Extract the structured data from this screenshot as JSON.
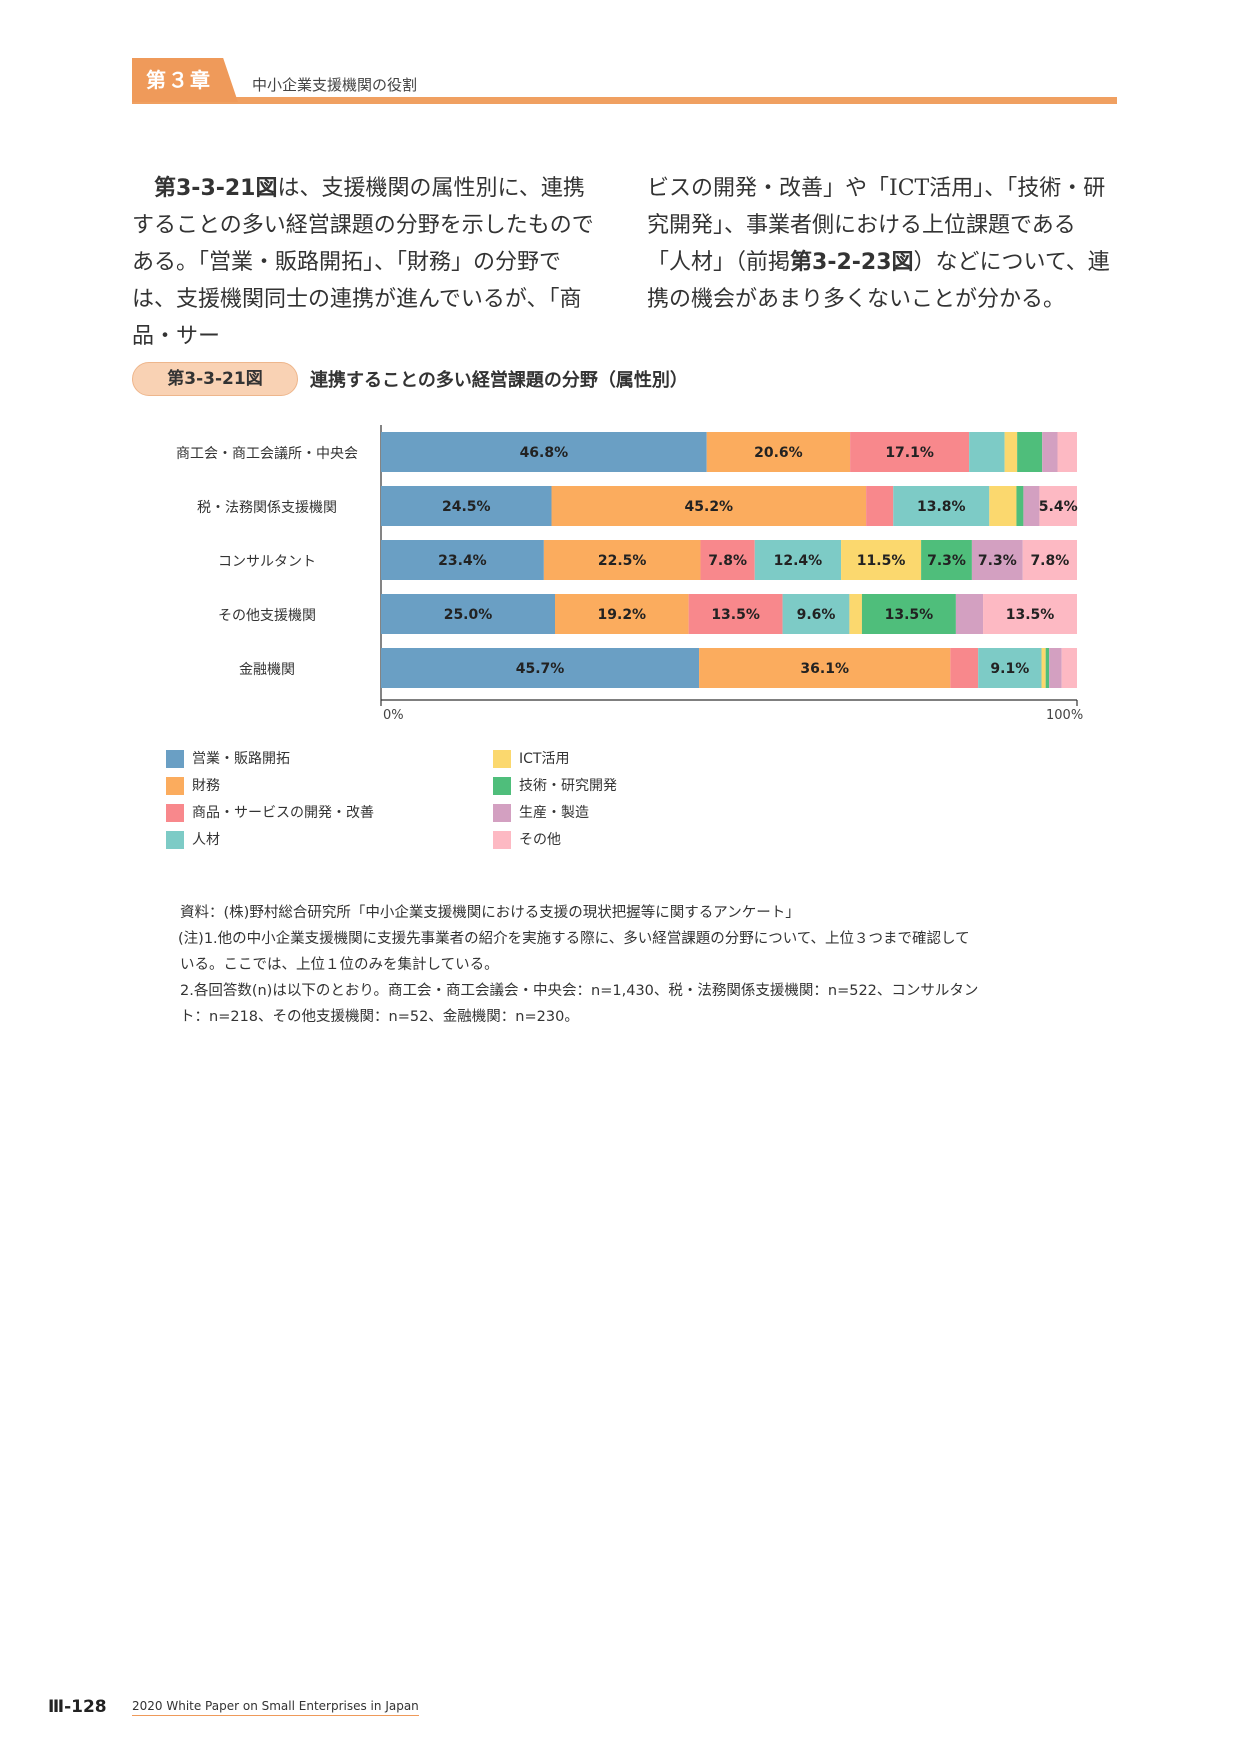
{
  "header": {
    "chapter_label": "第３章",
    "chapter_title": "中小企業支援機関の役割"
  },
  "body": {
    "left": {
      "fig_ref": "第3-3-21図",
      "text": "は、支援機関の属性別に、連携することの多い経営課題の分野を示したものである。「営業・販路開拓」、「財務」の分野では、支援機関同士の連携が進んでいるが、「商品・サー"
    },
    "right": {
      "text1": "ビスの開発・改善」や「ICT活用」、「技術・研究開発」、事業者側における上位課題である「人材」（前掲",
      "fig_ref": "第3-2-23図",
      "text2": "）などについて、連携の機会があまり多くないことが分かる。"
    }
  },
  "figure": {
    "number": "第3-3-21図",
    "title": "連携することの多い経営課題の分野（属性別）"
  },
  "chart_data": {
    "type": "bar",
    "orientation": "horizontal",
    "stacked": "100%",
    "categories": [
      "商工会・商工会議所・中央会",
      "税・法務関係支援機関",
      "コンサルタント",
      "その他支援機関",
      "金融機関"
    ],
    "series": [
      {
        "name": "営業・販路開拓",
        "color": "#6a9fc4",
        "values": [
          46.8,
          24.5,
          23.4,
          25.0,
          45.7
        ]
      },
      {
        "name": "財務",
        "color": "#fbac5e",
        "values": [
          20.6,
          45.2,
          22.5,
          19.2,
          36.1
        ]
      },
      {
        "name": "商品・サービスの開発・改善",
        "color": "#f8888c",
        "values": [
          17.1,
          3.9,
          7.8,
          13.5,
          4.0
        ]
      },
      {
        "name": "人材",
        "color": "#7dcbc6",
        "values": [
          5.1,
          13.8,
          12.4,
          9.6,
          9.1
        ]
      },
      {
        "name": "ICT活用",
        "color": "#fbd86e",
        "values": [
          1.8,
          3.9,
          11.5,
          1.8,
          0.6
        ]
      },
      {
        "name": "技術・研究開発",
        "color": "#4fbe7b",
        "values": [
          3.6,
          1.0,
          7.3,
          13.5,
          0.5
        ]
      },
      {
        "name": "生産・製造",
        "color": "#d3a0c1",
        "values": [
          2.2,
          2.3,
          7.3,
          3.9,
          1.8
        ]
      },
      {
        "name": "その他",
        "color": "#fdb9c3",
        "values": [
          2.8,
          5.4,
          7.8,
          13.5,
          2.2
        ]
      }
    ],
    "data_labels": [
      [
        "46.8%",
        "20.6%",
        "17.1%",
        "",
        "",
        "",
        "",
        ""
      ],
      [
        "24.5%",
        "45.2%",
        "",
        "13.8%",
        "",
        "",
        "",
        "5.4%"
      ],
      [
        "23.4%",
        "22.5%",
        "7.8%",
        "12.4%",
        "11.5%",
        "7.3%",
        "7.3%",
        "7.8%"
      ],
      [
        "25.0%",
        "19.2%",
        "13.5%",
        "9.6%",
        "",
        "13.5%",
        "",
        "13.5%"
      ],
      [
        "45.7%",
        "36.1%",
        "",
        "9.1%",
        "",
        "",
        "",
        ""
      ]
    ],
    "x_ticks": [
      "0%",
      "100%"
    ],
    "xlim": [
      0,
      100
    ],
    "legend_placement": "bottom",
    "grid": false
  },
  "legend": [
    {
      "label": "営業・販路開拓",
      "color": "#6a9fc4"
    },
    {
      "label": "財務",
      "color": "#fbac5e"
    },
    {
      "label": "商品・サービスの開発・改善",
      "color": "#f8888c"
    },
    {
      "label": "人材",
      "color": "#7dcbc6"
    },
    {
      "label": "ICT活用",
      "color": "#fbd86e"
    },
    {
      "label": "技術・研究開発",
      "color": "#4fbe7b"
    },
    {
      "label": "生産・製造",
      "color": "#d3a0c1"
    },
    {
      "label": "その他",
      "color": "#fdb9c3"
    }
  ],
  "notes": {
    "source": "資料：(株)野村総合研究所「中小企業支援機関における支援の現状把握等に関するアンケート」",
    "note1_a": "(注)1.他の中小企業支援機関に支援先事業者の紹介を実施する際に、多い経営課題の分野について、上位３つまで確認して",
    "note1_b": "いる。ここでは、上位１位のみを集計している。",
    "note2_a": "2.各回答数(n)は以下のとおり。商工会・商工会議会・中央会：n=1,430、税・法務関係支援機関：n=522、コンサルタン",
    "note2_b": "ト：n=218、その他支援機関：n=52、金融機関：n=230。"
  },
  "footer": {
    "page_number": "Ⅲ-128",
    "publication": "2020 White Paper on Small Enterprises in Japan"
  }
}
